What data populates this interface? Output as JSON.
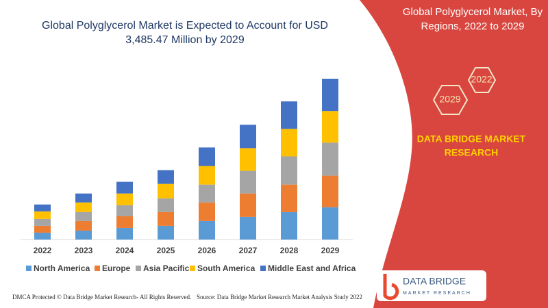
{
  "chart_data": {
    "type": "bar",
    "stacked": true,
    "title": [
      "Global Polyglycerol Market is Expected to Account for USD",
      "3,485.47 Million by 2029"
    ],
    "categories": [
      "2022",
      "2023",
      "2024",
      "2025",
      "2026",
      "2027",
      "2028",
      "2029"
    ],
    "series": [
      {
        "name": "North America",
        "color": "#5b9bd5",
        "values": [
          10,
          13,
          17,
          20,
          27,
          33,
          40,
          47
        ]
      },
      {
        "name": "Europe",
        "color": "#ed7d31",
        "values": [
          10,
          14,
          17,
          20,
          27,
          34,
          40,
          46
        ]
      },
      {
        "name": "Asia Pacific",
        "color": "#a5a5a5",
        "values": [
          10,
          13,
          16,
          20,
          26,
          33,
          41,
          48
        ]
      },
      {
        "name": "South America",
        "color": "#ffc000",
        "values": [
          11,
          14,
          17,
          21,
          27,
          33,
          40,
          46
        ]
      },
      {
        "name": "Middle East and Africa",
        "color": "#4472c4",
        "values": [
          10,
          13,
          17,
          20,
          27,
          34,
          40,
          47
        ]
      }
    ]
  },
  "panel": {
    "title": [
      "Global Polyglycerol Market, By",
      "Regions, 2022 to 2029"
    ],
    "hexagons": [
      "2022",
      "2029"
    ],
    "brand": [
      "DATA BRIDGE MARKET",
      "RESEARCH"
    ],
    "logo": [
      "DATA BRIDGE",
      "MARKET RESEARCH"
    ]
  },
  "footer": {
    "left": "DMCA Protected © Data Bridge Market Research- All Rights Reserved.",
    "right": "Source: Data Bridge Market Research Market Analysis Study 2022"
  }
}
